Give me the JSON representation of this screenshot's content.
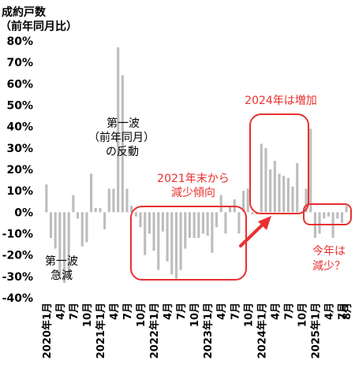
{
  "chart_data": {
    "type": "bar",
    "ylabel_lines": [
      "成約戸数",
      "（前年同月比）"
    ],
    "y_ticks": [
      "80%",
      "70%",
      "60%",
      "50%",
      "40%",
      "30%",
      "20%",
      "10%",
      "0%",
      "-10%",
      "-20%",
      "-30%",
      "-40%"
    ],
    "ylim": [
      -40,
      80
    ],
    "grid": false,
    "bar_color": "#bdbdbd",
    "x_ticks": [
      {
        "i": 0,
        "label": "2020年1月"
      },
      {
        "i": 3,
        "label": "4月"
      },
      {
        "i": 6,
        "label": "7月"
      },
      {
        "i": 9,
        "label": "10月"
      },
      {
        "i": 12,
        "label": "2021年1月"
      },
      {
        "i": 15,
        "label": "4月"
      },
      {
        "i": 18,
        "label": "7月"
      },
      {
        "i": 21,
        "label": "10月"
      },
      {
        "i": 24,
        "label": "2022年1月"
      },
      {
        "i": 27,
        "label": "4月"
      },
      {
        "i": 30,
        "label": "7月"
      },
      {
        "i": 33,
        "label": "10月"
      },
      {
        "i": 36,
        "label": "2023年1月"
      },
      {
        "i": 39,
        "label": "4月"
      },
      {
        "i": 42,
        "label": "7月"
      },
      {
        "i": 45,
        "label": "10月"
      },
      {
        "i": 48,
        "label": "2024年1月"
      },
      {
        "i": 51,
        "label": "4月"
      },
      {
        "i": 54,
        "label": "7月"
      },
      {
        "i": 57,
        "label": "10月"
      },
      {
        "i": 60,
        "label": "2025年1月"
      },
      {
        "i": 63,
        "label": "4月"
      },
      {
        "i": 66,
        "label": "7月"
      },
      {
        "i": 67,
        "label": "8月"
      }
    ],
    "values": [
      13,
      -12,
      -17,
      -31,
      -33,
      -30,
      8,
      -3,
      -16,
      -14,
      18,
      2,
      2,
      -8,
      11,
      11,
      77,
      64,
      11,
      3,
      -2,
      -7,
      -20,
      -10,
      -18,
      -27,
      -9,
      -23,
      -29,
      -31,
      -27,
      -17,
      -12,
      -12,
      -12,
      -10,
      -11,
      -19,
      -7,
      8,
      -10,
      3,
      6,
      -10,
      10,
      11,
      -1,
      -1,
      32,
      30,
      20,
      24,
      18,
      17,
      16,
      12,
      23,
      0,
      11,
      39,
      -12,
      -10,
      -3,
      -2,
      -12,
      -3,
      -5,
      3
    ]
  },
  "annotations": {
    "first_wave": [
      "第一波",
      "急減"
    ],
    "first_wave_reaction": [
      "第一波",
      "（前年同月）",
      "の反動"
    ],
    "late_2021": [
      "2021年末から",
      "減少傾向"
    ],
    "increase_2024": "2024年は増加",
    "decrease_2025": [
      "今年は",
      "減少？"
    ]
  },
  "colors": {
    "highlight": "#e8312f",
    "bar": "#bdbdbd",
    "axis_text": "#000000"
  }
}
